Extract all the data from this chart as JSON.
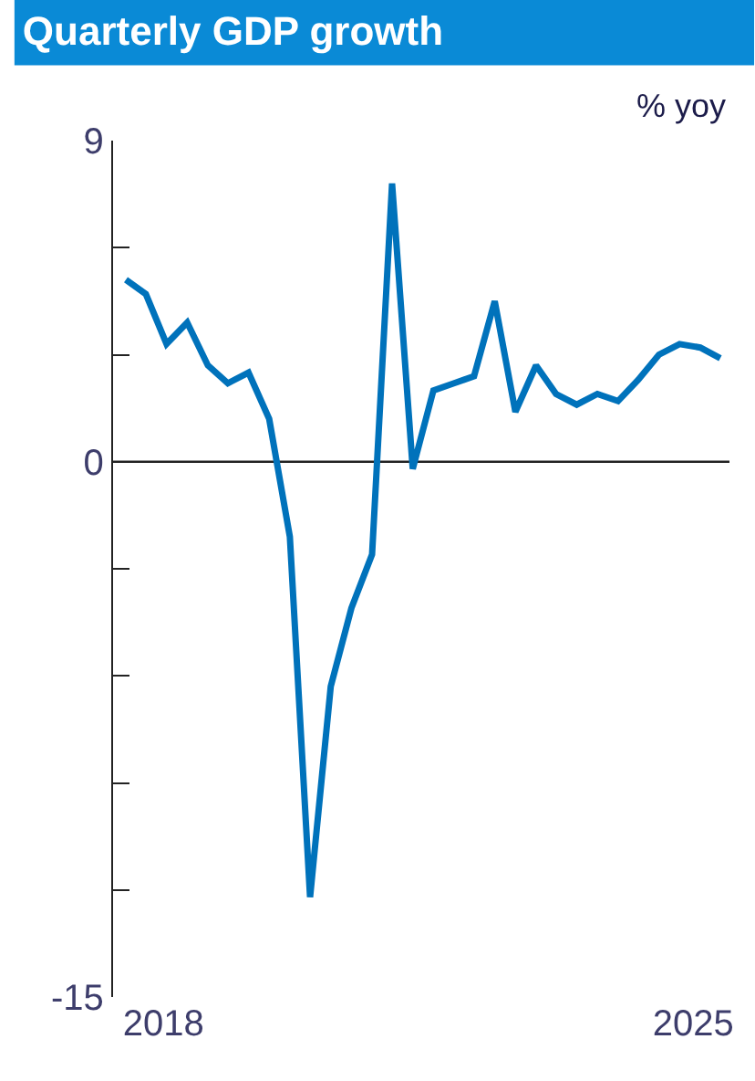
{
  "chart_data": {
    "type": "line",
    "title": "Quarterly GDP growth",
    "ylabel": "% yoy",
    "x": [
      "2018-02-15",
      "2018-05-15",
      "2018-08-15",
      "2018-11-15",
      "2019-02-15",
      "2019-05-15",
      "2019-08-15",
      "2019-11-15",
      "2020-02-15",
      "2020-05-15",
      "2020-08-15",
      "2020-11-15",
      "2021-02-15",
      "2021-05-15",
      "2021-08-15",
      "2021-11-15",
      "2022-02-15",
      "2022-05-15",
      "2022-08-15",
      "2022-11-15",
      "2023-02-15",
      "2023-05-15",
      "2023-08-15",
      "2023-11-15",
      "2024-02-15",
      "2024-05-15",
      "2024-08-15",
      "2024-11-15",
      "2025-02-15",
      "2025-05-15"
    ],
    "series": [
      {
        "color": "#0072bb",
        "values": [
          5.1,
          4.7,
          3.3,
          3.9,
          2.7,
          2.2,
          2.5,
          1.2,
          -2.1,
          -12.2,
          -6.3,
          -4.1,
          -2.6,
          7.8,
          -0.2,
          2.0,
          2.2,
          2.4,
          4.5,
          1.4,
          2.7,
          1.9,
          1.6,
          1.9,
          1.7,
          2.3,
          3.0,
          3.3,
          3.2,
          2.9
        ]
      }
    ],
    "xlim": [
      "2017-12-20",
      "2025-06-25"
    ],
    "xticks": [
      {
        "value": "2018-08-01",
        "label": "2018"
      },
      {
        "value": "2025-01-15",
        "label": "2025"
      }
    ],
    "ylim": [
      -15,
      9
    ],
    "yticks": [
      {
        "value": 9,
        "label": "9"
      },
      {
        "value": 6,
        "label": null
      },
      {
        "value": 3,
        "label": null
      },
      {
        "value": 0,
        "label": "0"
      },
      {
        "value": -3,
        "label": null
      },
      {
        "value": -6,
        "label": null
      },
      {
        "value": -9,
        "label": null
      },
      {
        "value": -12,
        "label": null
      },
      {
        "value": -15,
        "label": "-15"
      }
    ],
    "ref_lines": [
      {
        "axis": "y",
        "value": 0,
        "color": "#222222"
      }
    ],
    "marker": "none",
    "line_style": "solid"
  }
}
